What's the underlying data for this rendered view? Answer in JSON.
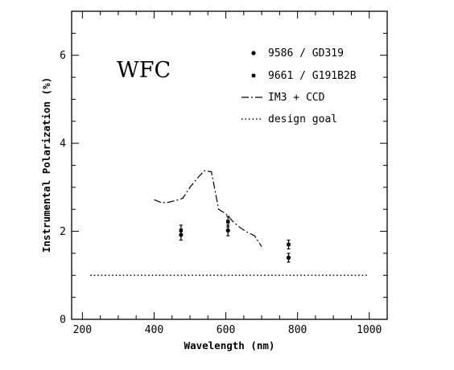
{
  "chart_data": {
    "type": "scatter",
    "annotation": "WFC",
    "xlabel": "Wavelength (nm)",
    "ylabel": "Instrumental Polarization (%)",
    "xlim": [
      170,
      1050
    ],
    "ylim": [
      0,
      7
    ],
    "xticks": [
      200,
      400,
      600,
      800,
      1000
    ],
    "yticks": [
      0,
      2,
      4,
      6
    ],
    "legend_position": "top-right",
    "series": [
      {
        "name": "9586 / GD319",
        "style": "circle",
        "points": [
          {
            "x": 475,
            "y": 1.92,
            "err": 0.12
          },
          {
            "x": 606,
            "y": 2.02,
            "err": 0.12
          },
          {
            "x": 775,
            "y": 1.4,
            "err": 0.1
          }
        ]
      },
      {
        "name": "9661 / G191B2B",
        "style": "square",
        "points": [
          {
            "x": 475,
            "y": 2.02,
            "err": 0.12
          },
          {
            "x": 606,
            "y": 2.22,
            "err": 0.12
          },
          {
            "x": 775,
            "y": 1.7,
            "err": 0.1
          }
        ]
      },
      {
        "name": "IM3 + CCD",
        "style": "dash-dot",
        "x": [
          400,
          420,
          440,
          460,
          480,
          500,
          520,
          540,
          560,
          580,
          600,
          620,
          640,
          660,
          680,
          700
        ],
        "y": [
          2.72,
          2.65,
          2.66,
          2.7,
          2.75,
          3.0,
          3.2,
          3.38,
          3.35,
          2.5,
          2.4,
          2.22,
          2.08,
          1.98,
          1.9,
          1.65
        ]
      },
      {
        "name": "design goal",
        "style": "dotted",
        "x": [
          222,
          1000
        ],
        "y": [
          1.0,
          1.0
        ]
      }
    ]
  }
}
